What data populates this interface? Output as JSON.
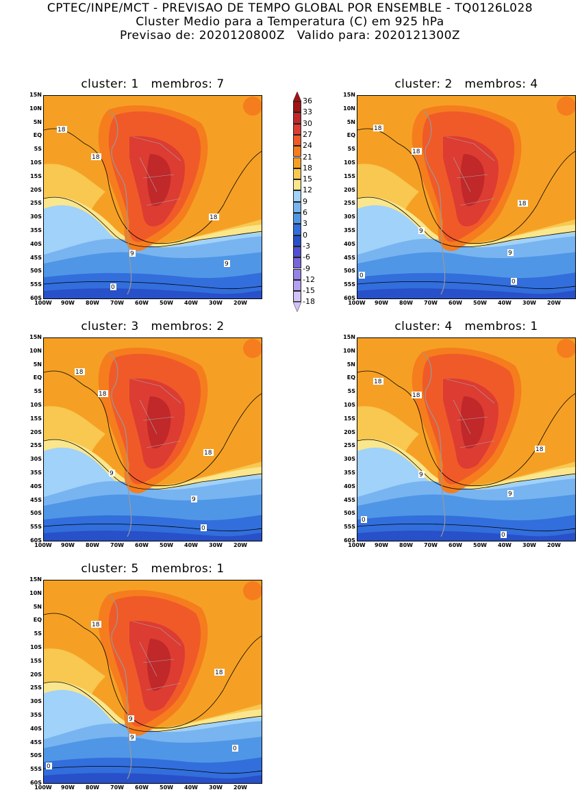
{
  "header": {
    "line1": "CPTEC/INPE/MCT - PREVISAO DE TEMPO GLOBAL POR ENSEMBLE - TQ0126L028",
    "line2": "Cluster Medio para a Temperatura (C) em 925 hPa",
    "line3": "Previsao de: 2020120800Z   Valido para: 2020121300Z"
  },
  "axes": {
    "lat_labels": [
      "15N",
      "10N",
      "5N",
      "EQ",
      "5S",
      "10S",
      "15S",
      "20S",
      "25S",
      "30S",
      "35S",
      "40S",
      "45S",
      "50S",
      "55S",
      "60S"
    ],
    "lon_labels": [
      "100W",
      "90W",
      "80W",
      "70W",
      "60W",
      "50W",
      "40W",
      "30W",
      "20W"
    ]
  },
  "colorbar": {
    "levels": [
      "36",
      "33",
      "30",
      "27",
      "24",
      "21",
      "18",
      "15",
      "12",
      "9",
      "6",
      "3",
      "0",
      "-3",
      "-6",
      "-9",
      "-12",
      "-15",
      "-18"
    ],
    "colors": [
      "#a01414",
      "#c0282a",
      "#dc3c32",
      "#f05a28",
      "#f57d1e",
      "#f5a024",
      "#f8c850",
      "#fae68c",
      "#a0d2fa",
      "#78b4f0",
      "#5096e6",
      "#326edc",
      "#2850c8",
      "#5050d2",
      "#7864dc",
      "#9682e6",
      "#b4a0f0",
      "#d2c3f5"
    ]
  },
  "panels": [
    {
      "title": "cluster: 1   membros: 7",
      "labels": [
        "18",
        "18",
        "18",
        "9",
        "9",
        "0"
      ]
    },
    {
      "title": "cluster: 2   membros: 4",
      "labels": [
        "18",
        "18",
        "18",
        "9",
        "9",
        "0",
        "0"
      ]
    },
    {
      "title": "cluster: 3   membros: 2",
      "labels": [
        "18",
        "18",
        "18",
        "9",
        "9",
        "0"
      ]
    },
    {
      "title": "cluster: 4   membros: 1",
      "labels": [
        "18",
        "18",
        "18",
        "9",
        "9",
        "0",
        "0"
      ]
    },
    {
      "title": "cluster: 5   membros: 1",
      "labels": [
        "18",
        "18",
        "9",
        "9",
        "0",
        "0"
      ]
    }
  ]
}
